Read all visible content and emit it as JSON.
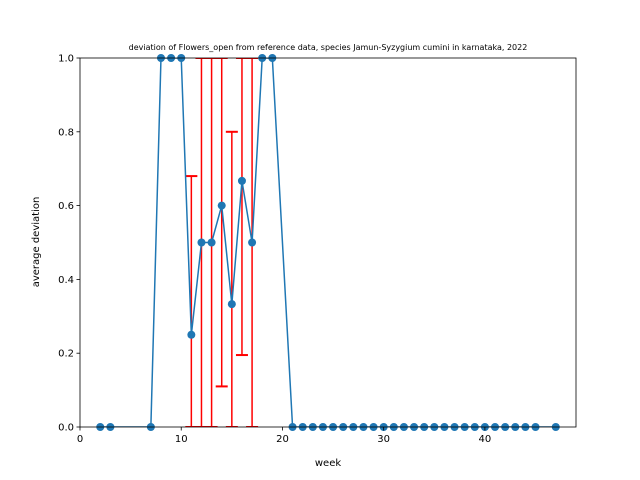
{
  "chart_data": {
    "type": "line",
    "title": "deviation of Flowers_open from reference data, species Jamun-Syzygium cumini in karnataka, 2022",
    "xlabel": "week",
    "ylabel": "average deviation",
    "xlim": [
      0,
      49
    ],
    "ylim": [
      0,
      1.0
    ],
    "xticks": [
      0,
      10,
      20,
      30,
      40
    ],
    "yticks": [
      0.0,
      0.2,
      0.4,
      0.6,
      0.8,
      1.0
    ],
    "xtick_labels": [
      "0",
      "10",
      "20",
      "30",
      "40"
    ],
    "ytick_labels": [
      "0.0",
      "0.2",
      "0.4",
      "0.6",
      "0.8",
      "1.0"
    ],
    "grid": false,
    "colors": {
      "series": "#1f77b4",
      "error": "#ff0000"
    },
    "series": [
      {
        "x": [
          2,
          3,
          7,
          8,
          9,
          10,
          11,
          12,
          13,
          14,
          15,
          16,
          17,
          18,
          19,
          21,
          22,
          23,
          24,
          25,
          26,
          27,
          28,
          29,
          30,
          31,
          32,
          33,
          34,
          35,
          36,
          37,
          38,
          39,
          40,
          41,
          42,
          43,
          44,
          45,
          47
        ],
        "y": [
          0,
          0,
          0,
          1,
          1,
          1,
          0.25,
          0.5,
          0.5,
          0.6,
          0.333,
          0.667,
          0.5,
          1,
          1,
          0,
          0,
          0,
          0,
          0,
          0,
          0,
          0,
          0,
          0,
          0,
          0,
          0,
          0,
          0,
          0,
          0,
          0,
          0,
          0,
          0,
          0,
          0,
          0,
          0,
          0
        ]
      }
    ],
    "error_bars": [
      {
        "x": 11,
        "low": 0.0,
        "high": 0.68
      },
      {
        "x": 12,
        "low": 0.0,
        "high": 1.0
      },
      {
        "x": 13,
        "low": 0.0,
        "high": 1.0
      },
      {
        "x": 14,
        "low": 0.11,
        "high": 1.0
      },
      {
        "x": 15,
        "low": 0.0,
        "high": 0.8
      },
      {
        "x": 16,
        "low": 0.195,
        "high": 1.0
      },
      {
        "x": 17,
        "low": 0.0,
        "high": 1.0
      }
    ]
  }
}
